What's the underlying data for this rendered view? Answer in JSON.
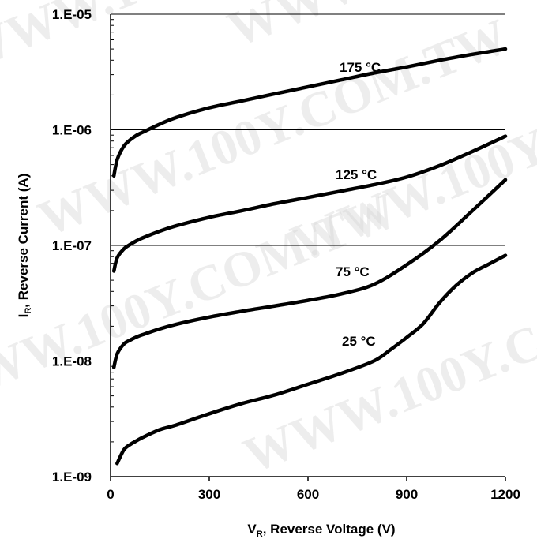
{
  "chart_data": {
    "type": "line",
    "title": "",
    "xlabel": {
      "main": "V",
      "sub": "R",
      "rest": ", Reverse Voltage (V)"
    },
    "ylabel": {
      "main": "I",
      "sub": "R",
      "rest": ", Reverse Current (A)"
    },
    "xlim": [
      0,
      1200
    ],
    "ylim": [
      1e-09,
      1e-05
    ],
    "yscale": "log",
    "x_ticks": [
      "0",
      "300",
      "600",
      "900",
      "1200"
    ],
    "y_ticks": [
      "1.E-09",
      "1.E-08",
      "1.E-07",
      "1.E-06",
      "1.E-05"
    ],
    "grid": "horizontal",
    "watermark": "WWW.100Y.COM.TW",
    "series": [
      {
        "name": "175 °C",
        "x": [
          10,
          20,
          40,
          60,
          80,
          100,
          150,
          200,
          300,
          400,
          500,
          600,
          700,
          800,
          900,
          1000,
          1100,
          1200
        ],
        "y": [
          4e-07,
          5.5e-07,
          7.2e-07,
          8.2e-07,
          9e-07,
          9.6e-07,
          1.12e-06,
          1.28e-06,
          1.55e-06,
          1.78e-06,
          2.05e-06,
          2.35e-06,
          2.7e-06,
          3.1e-06,
          3.5e-06,
          4e-06,
          4.5e-06,
          5e-06
        ]
      },
      {
        "name": "125  °C",
        "x": [
          10,
          20,
          40,
          60,
          80,
          100,
          150,
          200,
          300,
          400,
          500,
          600,
          700,
          800,
          900,
          1000,
          1100,
          1200
        ],
        "y": [
          6e-08,
          7.8e-08,
          9.3e-08,
          1.02e-07,
          1.1e-07,
          1.17e-07,
          1.33e-07,
          1.48e-07,
          1.75e-07,
          2e-07,
          2.3e-07,
          2.6e-07,
          2.95e-07,
          3.35e-07,
          3.9e-07,
          4.9e-07,
          6.5e-07,
          8.8e-07
        ]
      },
      {
        "name": "75 °C",
        "x": [
          10,
          20,
          40,
          60,
          80,
          100,
          150,
          200,
          300,
          400,
          500,
          600,
          700,
          800,
          900,
          1000,
          1100,
          1200
        ],
        "y": [
          8.8e-09,
          1.15e-08,
          1.4e-08,
          1.52e-08,
          1.62e-08,
          1.7e-08,
          1.9e-08,
          2.08e-08,
          2.4e-08,
          2.7e-08,
          3e-08,
          3.35e-08,
          3.8e-08,
          4.6e-08,
          6.8e-08,
          1.1e-07,
          2e-07,
          3.7e-07
        ]
      },
      {
        "name": "25 °C",
        "x": [
          20,
          40,
          60,
          80,
          100,
          150,
          200,
          300,
          400,
          500,
          600,
          700,
          800,
          850,
          900,
          950,
          1000,
          1050,
          1100,
          1150,
          1200
        ],
        "y": [
          1.3e-09,
          1.7e-09,
          1.9e-09,
          2.05e-09,
          2.2e-09,
          2.55e-09,
          2.8e-09,
          3.5e-09,
          4.3e-09,
          5.1e-09,
          6.3e-09,
          7.8e-09,
          1e-08,
          1.25e-08,
          1.6e-08,
          2.1e-08,
          3.2e-08,
          4.5e-08,
          5.8e-08,
          6.9e-08,
          8.2e-08
        ]
      }
    ]
  }
}
